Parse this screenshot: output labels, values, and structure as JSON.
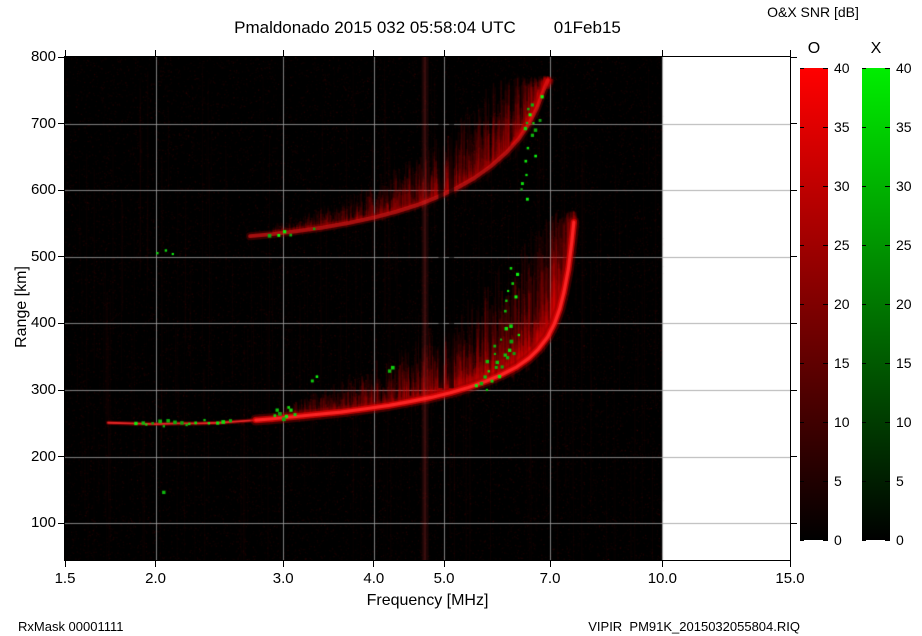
{
  "header": {
    "title": "Pmaldonado 2015 032 05:58:04 UTC",
    "date": "01Feb15"
  },
  "footer": {
    "left": "RxMask 00001111",
    "right": "VIPIR  PM91K_2015032055804.RIQ"
  },
  "colorbar": {
    "title": "O&X SNR [dB]",
    "min": 0,
    "max": 40,
    "tick_values": [
      40,
      35,
      30,
      25,
      20,
      15,
      10,
      5,
      0
    ],
    "bars": [
      {
        "label": "O",
        "color": "#ff0000"
      },
      {
        "label": "X",
        "color": "#00ee00"
      }
    ]
  },
  "chart_data": {
    "type": "heatmap",
    "subtype": "ionogram",
    "title": "Pmaldonado 2015 032 05:58:04 UTC 01Feb15",
    "xlabel": "Frequency [MHz]",
    "ylabel": "Range [km]",
    "zlabel": "O&X SNR [dB]",
    "x_scale": "log",
    "x_range": [
      1.5,
      15
    ],
    "sweep_max": 10,
    "x_tick_values": [
      1.5,
      2,
      3,
      4,
      5,
      7,
      10,
      15
    ],
    "x_tick_labels": [
      "1.5",
      "2.0",
      "3.0",
      "4.0",
      "5.0",
      "7.0",
      "10.0",
      "15.0"
    ],
    "x_grid": [
      2,
      3,
      4,
      5,
      7,
      10
    ],
    "y_range": [
      45,
      800
    ],
    "y_tick_values": [
      100,
      200,
      300,
      400,
      500,
      600,
      700,
      800
    ],
    "y_grid": [
      100,
      200,
      300,
      400,
      500,
      600,
      700
    ],
    "o_trace_hop1_flat": [
      [
        1.72,
        251
      ],
      [
        1.85,
        250
      ],
      [
        2.0,
        249
      ],
      [
        2.15,
        250
      ],
      [
        2.3,
        250
      ],
      [
        2.45,
        251
      ],
      [
        2.6,
        253
      ],
      [
        2.75,
        255
      ]
    ],
    "o_trace_hop1": [
      [
        2.75,
        255
      ],
      [
        2.9,
        257
      ],
      [
        3.1,
        260
      ],
      [
        3.3,
        263
      ],
      [
        3.6,
        267
      ],
      [
        3.9,
        272
      ],
      [
        4.2,
        277
      ],
      [
        4.5,
        283
      ],
      [
        4.8,
        289
      ],
      [
        5.1,
        296
      ],
      [
        5.4,
        304
      ],
      [
        5.7,
        313
      ],
      [
        6.0,
        323
      ],
      [
        6.3,
        335
      ],
      [
        6.55,
        348
      ],
      [
        6.75,
        362
      ],
      [
        6.95,
        380
      ],
      [
        7.1,
        400
      ],
      [
        7.22,
        422
      ],
      [
        7.32,
        448
      ],
      [
        7.42,
        482
      ],
      [
        7.5,
        522
      ],
      [
        7.55,
        552
      ]
    ],
    "o_trace_hop2": [
      [
        2.7,
        531
      ],
      [
        2.9,
        534
      ],
      [
        3.1,
        538
      ],
      [
        3.4,
        544
      ],
      [
        3.7,
        551
      ],
      [
        4.0,
        559
      ],
      [
        4.3,
        568
      ],
      [
        4.6,
        578
      ],
      [
        4.9,
        590
      ],
      [
        5.2,
        603
      ],
      [
        5.5,
        618
      ],
      [
        5.8,
        636
      ],
      [
        6.1,
        657
      ],
      [
        6.35,
        678
      ],
      [
        6.55,
        700
      ],
      [
        6.72,
        724
      ],
      [
        6.85,
        748
      ],
      [
        6.95,
        765
      ]
    ],
    "rfi_bright_freqs": [
      4.7
    ],
    "rfi_dark_freqs": [
      4.95,
      5.12
    ],
    "x_mode_points": [
      [
        1.88,
        250
      ],
      [
        1.93,
        252
      ],
      [
        1.98,
        249
      ],
      [
        2.03,
        251
      ],
      [
        2.08,
        253
      ],
      [
        2.13,
        250
      ],
      [
        2.18,
        252
      ],
      [
        2.23,
        249
      ],
      [
        2.28,
        251
      ],
      [
        2.33,
        253
      ],
      [
        2.38,
        250
      ],
      [
        2.43,
        252
      ],
      [
        2.48,
        254
      ],
      [
        2.53,
        252
      ],
      [
        2.2,
        247
      ],
      [
        2.06,
        247
      ],
      [
        1.95,
        246
      ],
      [
        2.92,
        262
      ],
      [
        2.97,
        265
      ],
      [
        3.02,
        261
      ],
      [
        3.07,
        268
      ],
      [
        3.12,
        264
      ],
      [
        2.95,
        270
      ],
      [
        3.05,
        272
      ],
      [
        3.0,
        258
      ],
      [
        3.33,
        320
      ],
      [
        3.29,
        316
      ],
      [
        4.2,
        330
      ],
      [
        4.26,
        334
      ],
      [
        5.55,
        305
      ],
      [
        5.62,
        312
      ],
      [
        5.68,
        320
      ],
      [
        5.72,
        302
      ],
      [
        5.78,
        327
      ],
      [
        5.83,
        313
      ],
      [
        5.88,
        332
      ],
      [
        5.92,
        342
      ],
      [
        5.97,
        322
      ],
      [
        6.02,
        337
      ],
      [
        6.07,
        352
      ],
      [
        6.12,
        347
      ],
      [
        6.17,
        362
      ],
      [
        6.22,
        372
      ],
      [
        6.27,
        357
      ],
      [
        6.32,
        382
      ],
      [
        5.9,
        367
      ],
      [
        6.0,
        377
      ],
      [
        6.1,
        392
      ],
      [
        6.2,
        397
      ],
      [
        5.75,
        345
      ],
      [
        5.85,
        355
      ],
      [
        6.05,
        420
      ],
      [
        6.1,
        432
      ],
      [
        6.15,
        447
      ],
      [
        6.22,
        462
      ],
      [
        6.27,
        442
      ],
      [
        6.32,
        472
      ],
      [
        6.2,
        482
      ],
      [
        2.02,
        505
      ],
      [
        2.07,
        508
      ],
      [
        2.12,
        506
      ],
      [
        2.86,
        530
      ],
      [
        2.95,
        533
      ],
      [
        3.0,
        536
      ],
      [
        3.06,
        534
      ],
      [
        3.3,
        541
      ],
      [
        6.4,
        600
      ],
      [
        6.42,
        612
      ],
      [
        6.47,
        622
      ],
      [
        6.5,
        642
      ],
      [
        6.55,
        662
      ],
      [
        6.6,
        682
      ],
      [
        6.65,
        702
      ],
      [
        6.7,
        692
      ],
      [
        6.6,
        712
      ],
      [
        6.55,
        722
      ],
      [
        6.5,
        702
      ],
      [
        6.46,
        692
      ],
      [
        6.68,
        652
      ],
      [
        6.75,
        707
      ],
      [
        6.62,
        727
      ],
      [
        6.52,
        585
      ],
      [
        2.05,
        148
      ],
      [
        6.85,
        742
      ]
    ]
  }
}
